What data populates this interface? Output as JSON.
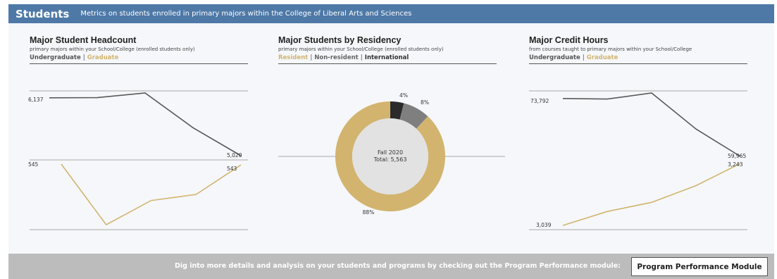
{
  "header": {
    "title": "Students",
    "subtitle": "Metrics on students enrolled in primary majors within the College of Liberal Arts and Sciences"
  },
  "cards": {
    "headcount": {
      "title": "Major Student Headcount",
      "subtitle": "primary majors within your School/College (enrolled students only)",
      "legend": [
        "Undergraduate",
        "|",
        "Graduate"
      ]
    },
    "residency": {
      "title": "Major Students by Residency",
      "subtitle": "primary majors within your School/College (enrolled students only)",
      "legend": [
        "Resident",
        "|",
        "Non-resident",
        "|",
        "International"
      ],
      "center_line1": "Fall 2020",
      "center_line2": "Total: 5,563"
    },
    "credit": {
      "title": "Major Credit Hours",
      "subtitle": "from courses taught to primary majors within your School/College",
      "legend": [
        "Undergraduate",
        "|",
        "Graduate"
      ]
    }
  },
  "footer": {
    "message": "Dig into more details and analysis on your students and programs by checking out the Program Performance module:",
    "button_label": "Program Performance Module"
  },
  "colors": {
    "header": "#4e79a7",
    "undergraduate": "#595959",
    "graduate": "#d2b46f",
    "resident": "#d2b46f",
    "nonresident": "#7f7f7f",
    "international": "#2b2b2b"
  },
  "chart_data": [
    {
      "type": "line",
      "title": "Major Student Headcount",
      "series": [
        {
          "name": "Undergraduate",
          "values": [
            6137,
            6140,
            6230,
            5560,
            5020
          ],
          "labels": [
            "6,137",
            "",
            "",
            "",
            "5,020"
          ]
        },
        {
          "name": "Graduate",
          "values": [
            545,
            395,
            455,
            470,
            543
          ],
          "labels": [
            "545",
            "",
            "",
            "",
            "543"
          ]
        }
      ]
    },
    {
      "type": "pie",
      "title": "Major Students by Residency",
      "slices": [
        {
          "name": "Resident",
          "value": 88,
          "label": "88%"
        },
        {
          "name": "International",
          "value": 4,
          "label": "4%"
        },
        {
          "name": "Non-resident",
          "value": 8,
          "label": "8%"
        }
      ]
    },
    {
      "type": "line",
      "title": "Major Credit Hours",
      "series": [
        {
          "name": "Undergraduate",
          "values": [
            73792,
            73650,
            75100,
            66500,
            59965
          ],
          "labels": [
            "73,792",
            "",
            "",
            "",
            "59,965"
          ]
        },
        {
          "name": "Graduate",
          "values": [
            3039,
            3085,
            3115,
            3170,
            3243
          ],
          "labels": [
            "3,039",
            "",
            "",
            "",
            "3,243"
          ]
        }
      ]
    }
  ]
}
